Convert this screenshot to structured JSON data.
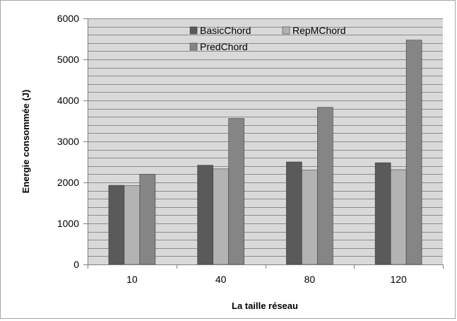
{
  "chart_data": {
    "type": "bar",
    "title": "",
    "xlabel": "La taille réseau",
    "ylabel": "Energie consommée (J)",
    "ylim": [
      0,
      6000
    ],
    "yticks": [
      "0",
      "1000",
      "2000",
      "3000",
      "4000",
      "5000",
      "6000"
    ],
    "categories": [
      "10",
      "40",
      "80",
      "120"
    ],
    "grid": true,
    "legend_position": "top",
    "series": [
      {
        "name": "BasicChord",
        "color": "#5a5a5a",
        "values": [
          1930,
          2420,
          2500,
          2480
        ]
      },
      {
        "name": "RepMChord",
        "color": "#b3b3b3",
        "values": [
          1920,
          2330,
          2300,
          2310
        ]
      },
      {
        "name": "PredChord",
        "color": "#858585",
        "values": [
          2200,
          3560,
          3830,
          5470
        ]
      }
    ]
  }
}
